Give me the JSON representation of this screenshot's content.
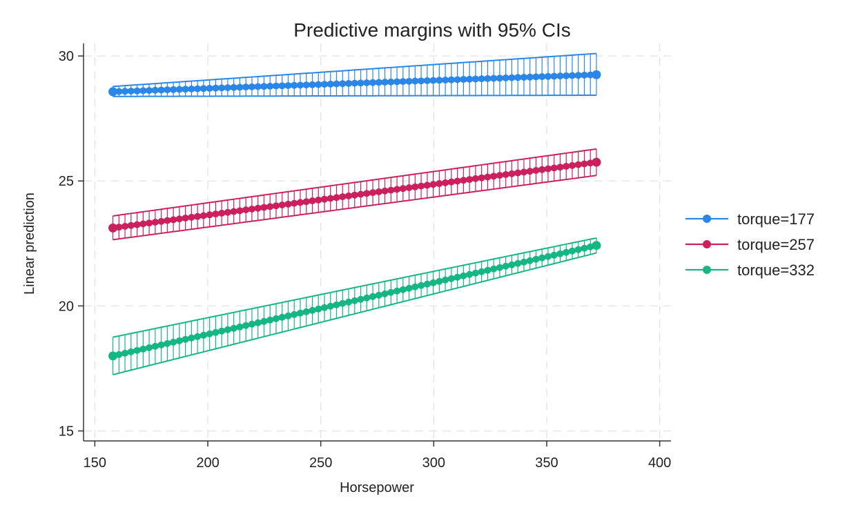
{
  "chart_data": {
    "type": "line",
    "title": "Predictive margins with 95% CIs",
    "xlabel": "Horsepower",
    "ylabel": "Linear prediction",
    "xlim": [
      145,
      405
    ],
    "ylim": [
      14.6,
      30.5
    ],
    "xticks": [
      150,
      200,
      250,
      300,
      350,
      400
    ],
    "yticks": [
      15,
      20,
      25,
      30
    ],
    "grid": true,
    "legend_position": "right",
    "x": [
      158,
      372
    ],
    "series": [
      {
        "name": "torque=177",
        "color": "#2a86e8",
        "values": [
          28.57,
          29.25
        ],
        "ci_low": [
          28.38,
          28.43
        ],
        "ci_high": [
          28.78,
          30.1
        ]
      },
      {
        "name": "torque=257",
        "color": "#cc1f5e",
        "values": [
          23.12,
          25.75
        ],
        "ci_low": [
          22.65,
          25.22
        ],
        "ci_high": [
          23.6,
          26.28
        ]
      },
      {
        "name": "torque=332",
        "color": "#14b684",
        "values": [
          18.0,
          22.42
        ],
        "ci_low": [
          17.25,
          22.12
        ],
        "ci_high": [
          18.75,
          22.72
        ]
      }
    ]
  }
}
